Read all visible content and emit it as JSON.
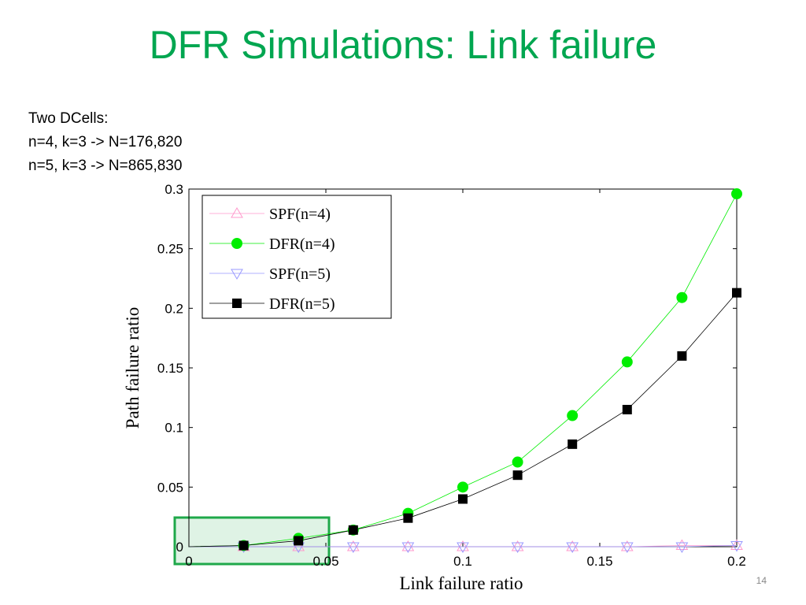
{
  "slide": {
    "title": "DFR Simulations: Link failure",
    "notes": [
      "Two DCells:",
      "n=4, k=3 -> N=176,820",
      "n=5, k=3 -> N=865,830"
    ],
    "page_number": "14"
  },
  "colors": {
    "title": "#00a650",
    "spf_n4": "#ff99cc",
    "dfr_n4": "#00ee00",
    "spf_n5": "#9999ff",
    "dfr_n5": "#000000",
    "highlight": "#1fa84a"
  },
  "chart_data": {
    "type": "line",
    "title": "",
    "xlabel": "Link failure ratio",
    "ylabel": "Path failure ratio",
    "xlim": [
      0,
      0.2
    ],
    "ylim": [
      0,
      0.3
    ],
    "x_ticks": [
      0,
      0.05,
      0.1,
      0.15,
      0.2
    ],
    "x_tick_labels": [
      "0",
      "0.05",
      "0.1",
      "0.15",
      "0.2"
    ],
    "y_ticks": [
      0,
      0.05,
      0.1,
      0.15,
      0.2,
      0.25,
      0.3
    ],
    "y_tick_labels": [
      "0",
      "0.05",
      "0.1",
      "0.15",
      "0.2",
      "0.25",
      "0.3"
    ],
    "grid": false,
    "legend_position": "top-left",
    "x": [
      0.02,
      0.04,
      0.06,
      0.08,
      0.1,
      0.12,
      0.14,
      0.16,
      0.18,
      0.2
    ],
    "series": [
      {
        "name": "SPF(n=4)",
        "marker": "triangle-up",
        "values": [
          0.0,
          0.0,
          0.0,
          0.0,
          0.0,
          0.0,
          0.0,
          0.0,
          0.001,
          0.001
        ]
      },
      {
        "name": "DFR(n=4)",
        "marker": "circle",
        "values": [
          0.001,
          0.007,
          0.014,
          0.028,
          0.05,
          0.071,
          0.11,
          0.155,
          0.209,
          0.296
        ]
      },
      {
        "name": "SPF(n=5)",
        "marker": "triangle-down",
        "values": [
          0.0,
          0.0,
          0.0,
          0.0,
          0.0,
          0.0,
          0.0,
          0.0,
          0.0,
          0.001
        ]
      },
      {
        "name": "DFR(n=5)",
        "marker": "square",
        "values": [
          0.001,
          0.005,
          0.014,
          0.024,
          0.04,
          0.06,
          0.086,
          0.115,
          0.16,
          0.213
        ]
      }
    ],
    "highlight_region": {
      "x": [
        0,
        0.05
      ],
      "y": [
        0,
        0.025
      ]
    }
  }
}
